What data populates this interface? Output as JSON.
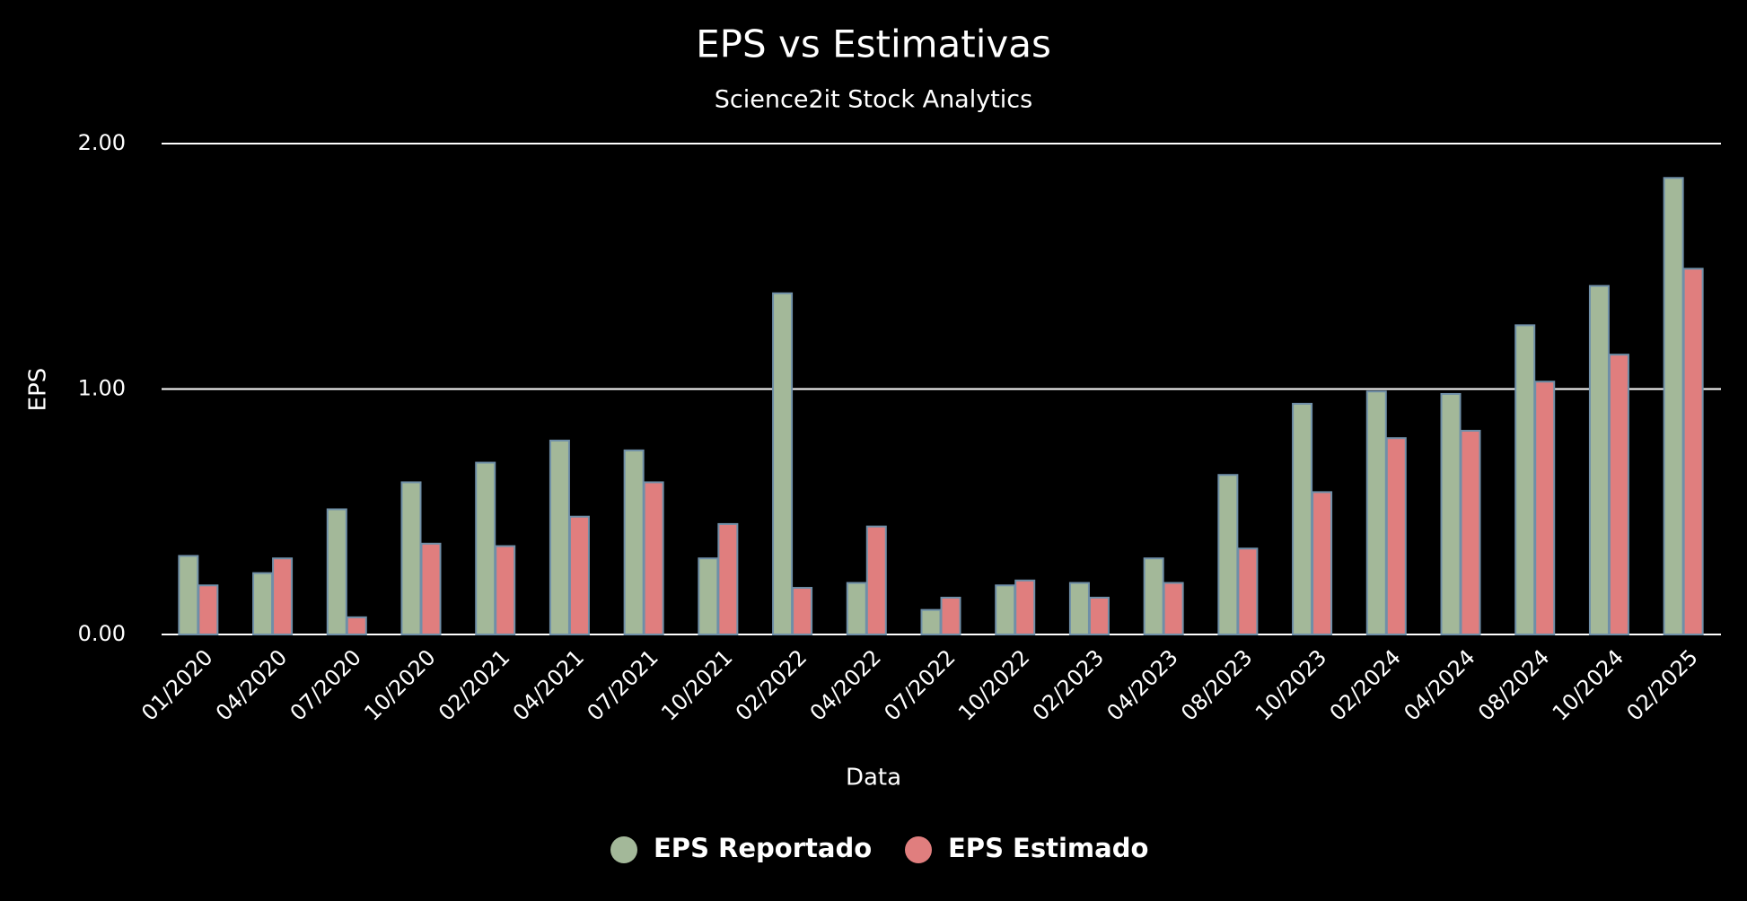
{
  "chart_data": {
    "type": "bar",
    "title": "EPS vs Estimativas",
    "subtitle": "Science2it Stock Analytics",
    "x_label": "Data",
    "y_label": "EPS",
    "categories": [
      "01/2020",
      "04/2020",
      "07/2020",
      "10/2020",
      "02/2021",
      "04/2021",
      "07/2021",
      "10/2021",
      "02/2022",
      "04/2022",
      "07/2022",
      "10/2022",
      "02/2023",
      "04/2023",
      "08/2023",
      "10/2023",
      "02/2024",
      "04/2024",
      "08/2024",
      "10/2024",
      "02/2025"
    ],
    "series": [
      {
        "name": "EPS Reportado",
        "color": "#a3b899",
        "values": [
          0.32,
          0.25,
          0.51,
          0.62,
          0.7,
          0.79,
          0.75,
          0.31,
          1.39,
          0.21,
          0.1,
          0.2,
          0.21,
          0.31,
          0.65,
          0.94,
          0.99,
          0.98,
          1.26,
          1.42,
          1.86
        ]
      },
      {
        "name": "EPS Estimado",
        "color": "#e07e7e",
        "values": [
          0.2,
          0.31,
          0.07,
          0.37,
          0.36,
          0.48,
          0.62,
          0.45,
          0.19,
          0.44,
          0.15,
          0.22,
          0.15,
          0.21,
          0.35,
          0.58,
          0.8,
          0.83,
          1.03,
          1.14,
          1.49
        ]
      }
    ],
    "ylim": [
      0,
      2
    ],
    "yticks": [
      {
        "value": 0,
        "label": "0.00"
      },
      {
        "value": 1,
        "label": "1.00"
      },
      {
        "value": 2,
        "label": "2.00"
      }
    ],
    "grid": true,
    "legend": "bottom"
  }
}
